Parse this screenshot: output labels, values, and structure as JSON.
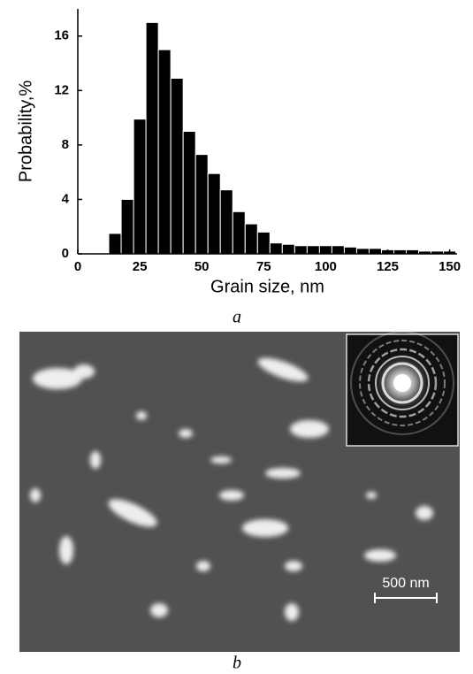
{
  "chart_data": {
    "type": "histogram",
    "xlabel": "Grain size, nm",
    "ylabel": "Probability,%",
    "bins": [
      12.5,
      17.5,
      22.5,
      27.5,
      32.5,
      37.5,
      42.5,
      47.5,
      52.5,
      57.5,
      62.5,
      67.5,
      72.5,
      77.5,
      82.5,
      87.5,
      92.5,
      97.5,
      102.5,
      107.5,
      112.5,
      117.5,
      122.5,
      127.5,
      132.5,
      137.5,
      142.5,
      147.5,
      152.5
    ],
    "values": [
      1.5,
      4,
      9.9,
      17,
      15,
      12.9,
      9,
      7.3,
      5.9,
      4.7,
      3.1,
      2.2,
      1.6,
      0.8,
      0.7,
      0.6,
      0.6,
      0.6,
      0.6,
      0.5,
      0.4,
      0.4,
      0.3,
      0.3,
      0.3,
      0.2,
      0.2,
      0.2
    ],
    "color": "#000000",
    "xlim": [
      0,
      153
    ],
    "xticks": [
      0,
      25,
      50,
      75,
      100,
      125,
      150
    ],
    "ylim": [
      0,
      18
    ],
    "yticks": [
      0,
      4,
      8,
      12,
      16
    ],
    "caption": "a"
  },
  "image": {
    "scale_bar": "500 nm",
    "caption": "b"
  }
}
